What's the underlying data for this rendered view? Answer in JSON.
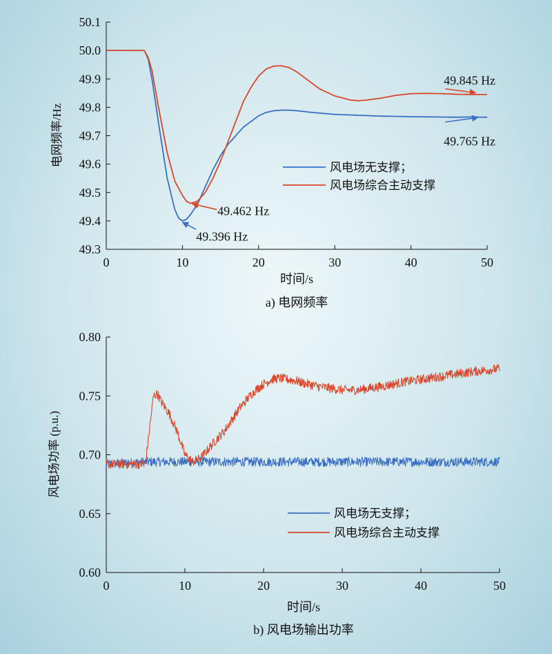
{
  "chart_data": [
    {
      "type": "line",
      "caption": "a) 电网频率",
      "xlabel": "时间/s",
      "ylabel": "电网频率/Hz",
      "xlim": [
        0,
        50
      ],
      "ylim": [
        49.3,
        50.1
      ],
      "xticks": [
        0,
        10,
        20,
        30,
        40,
        50
      ],
      "yticks": [
        49.3,
        49.4,
        49.5,
        49.6,
        49.7,
        49.8,
        49.9,
        50.0,
        50.1
      ],
      "ytick_labels": [
        "49.3",
        "49.4",
        "49.5",
        "49.6",
        "49.7",
        "49.8",
        "49.9",
        "50.0",
        "50.1"
      ],
      "legend_position": "center-right",
      "series": [
        {
          "name": "风电场无支撑；",
          "color": "#3a6fc4",
          "x": [
            0,
            5,
            5.5,
            6,
            7,
            8,
            9,
            9.5,
            10,
            10.5,
            11,
            12,
            13,
            14,
            15,
            16,
            17,
            18,
            19,
            20,
            21,
            22,
            23,
            24,
            25,
            27,
            30,
            33,
            36,
            40,
            43,
            46,
            48,
            50
          ],
          "y": [
            50.0,
            50.0,
            49.97,
            49.9,
            49.72,
            49.55,
            49.44,
            49.41,
            49.4,
            49.405,
            49.42,
            49.46,
            49.52,
            49.58,
            49.63,
            49.67,
            49.7,
            49.73,
            49.75,
            49.77,
            49.782,
            49.788,
            49.79,
            49.79,
            49.788,
            49.782,
            49.775,
            49.772,
            49.769,
            49.767,
            49.766,
            49.765,
            49.766,
            49.765
          ]
        },
        {
          "name": "风电场综合主动支撑",
          "color": "#d9482a",
          "x": [
            0,
            5,
            5.5,
            6,
            7,
            8,
            9,
            10,
            10.5,
            11,
            11.5,
            12,
            13,
            14,
            15,
            16,
            17,
            18,
            19,
            20,
            21,
            22,
            23,
            24,
            25,
            26,
            27,
            28,
            30,
            32,
            33,
            34,
            36,
            38,
            40,
            42,
            44,
            46,
            48,
            50
          ],
          "y": [
            50.0,
            50.0,
            49.975,
            49.93,
            49.78,
            49.64,
            49.54,
            49.49,
            49.47,
            49.462,
            49.465,
            49.47,
            49.5,
            49.55,
            49.61,
            49.68,
            49.75,
            49.82,
            49.87,
            49.91,
            49.935,
            49.945,
            49.946,
            49.94,
            49.925,
            49.905,
            49.885,
            49.865,
            49.84,
            49.826,
            49.823,
            49.825,
            49.832,
            49.842,
            49.848,
            49.849,
            49.848,
            49.846,
            49.845,
            49.845
          ]
        }
      ],
      "annotations": [
        {
          "text": "49.845 Hz",
          "color": "#d9482a",
          "x": 44.3,
          "y": 49.87,
          "tx": 44.3,
          "ty": 49.895,
          "ax": 44.5,
          "ay": 49.865,
          "bx": 48.5,
          "by": 49.851
        },
        {
          "text": "49.765 Hz",
          "color": "#3a6fc4",
          "x": 44.3,
          "y": 49.72,
          "tx": 44.3,
          "ty": 49.68,
          "ax": 44.5,
          "ay": 49.748,
          "bx": 48.8,
          "by": 49.764
        },
        {
          "text": "49.462 Hz",
          "color": "#d9482a",
          "x": 14.5,
          "y": 49.44,
          "tx": 14.6,
          "ty": 49.435,
          "ax": 14.5,
          "ay": 49.44,
          "bx": 11.3,
          "by": 49.46
        },
        {
          "text": "49.396 Hz",
          "color": "#3a6fc4",
          "x": 11.8,
          "y": 49.35,
          "tx": 11.8,
          "ty": 49.345,
          "ax": 11.8,
          "ay": 49.37,
          "bx": 10.0,
          "by": 49.395
        }
      ]
    },
    {
      "type": "line",
      "caption": "b) 风电场输出功率",
      "xlabel": "时间/s",
      "ylabel": "风电场功率 (p.u.)",
      "xlim": [
        0,
        50
      ],
      "ylim": [
        0.6,
        0.8
      ],
      "xticks": [
        0,
        10,
        20,
        30,
        40,
        50
      ],
      "yticks": [
        0.6,
        0.65,
        0.7,
        0.75,
        0.8
      ],
      "ytick_labels": [
        "0.60",
        "0.65",
        "0.70",
        "0.75",
        "0.80"
      ],
      "legend_position": "bottom-right",
      "noise_amplitude": 0.004,
      "series": [
        {
          "name": "风电场无支撑；",
          "color": "#3a6fc4",
          "x": [
            0,
            5,
            10,
            15,
            20,
            25,
            30,
            35,
            40,
            45,
            50
          ],
          "y": [
            0.692,
            0.694,
            0.694,
            0.694,
            0.694,
            0.694,
            0.694,
            0.694,
            0.694,
            0.694,
            0.694
          ]
        },
        {
          "name": "风电场综合主动支撑",
          "color": "#d9482a",
          "x": [
            0,
            3,
            5,
            5.2,
            6,
            6.5,
            7,
            8,
            9,
            10,
            11,
            12,
            13,
            14,
            15,
            16,
            17,
            18,
            19,
            20,
            21,
            22,
            23,
            24,
            25,
            27,
            28,
            30,
            32,
            33,
            35,
            38,
            40,
            42,
            45,
            47,
            50
          ],
          "y": [
            0.692,
            0.692,
            0.692,
            0.705,
            0.75,
            0.752,
            0.745,
            0.735,
            0.72,
            0.7,
            0.694,
            0.697,
            0.705,
            0.713,
            0.72,
            0.73,
            0.74,
            0.748,
            0.755,
            0.76,
            0.764,
            0.765,
            0.764,
            0.763,
            0.761,
            0.758,
            0.757,
            0.755,
            0.755,
            0.756,
            0.758,
            0.762,
            0.764,
            0.766,
            0.769,
            0.771,
            0.773
          ]
        }
      ]
    }
  ]
}
